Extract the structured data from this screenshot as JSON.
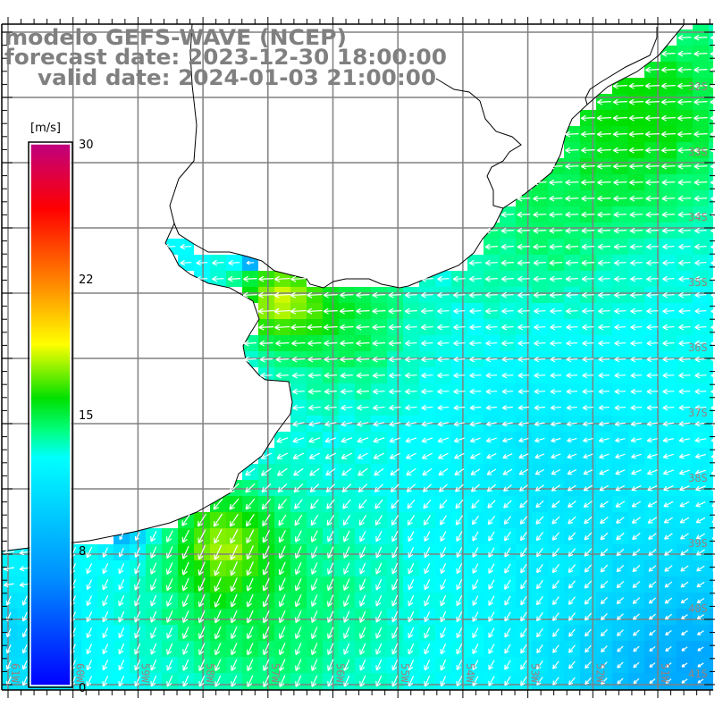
{
  "title": {
    "model": "modelo GEFS-WAVE (NCEP)",
    "forecast": "forecast date: 2023-12-30 18:00:00",
    "valid": "valid date: 2024-01-03 21:00:00"
  },
  "colorbar": {
    "unit": "[m/s]",
    "ticks": [
      "30",
      "22",
      "15",
      "8",
      "0"
    ],
    "colors": [
      "#c0007f",
      "#ff0000",
      "#ff8000",
      "#ffff00",
      "#00e000",
      "#00ff80",
      "#00ffff",
      "#0090ff",
      "#0000ff"
    ]
  },
  "axes": {
    "longitudes": [
      "61W",
      "60W",
      "59W",
      "58W",
      "57W",
      "56W",
      "55W",
      "54W",
      "53W",
      "52W",
      "51W"
    ],
    "latitudes": [
      "32S",
      "33S",
      "34S",
      "35S",
      "36S",
      "37S",
      "38S",
      "39S",
      "40S",
      "41S"
    ]
  },
  "colors": {
    "grid": "#808080",
    "coast": "#000000",
    "arrow": "#ffffff",
    "label": "#9a8080"
  }
}
